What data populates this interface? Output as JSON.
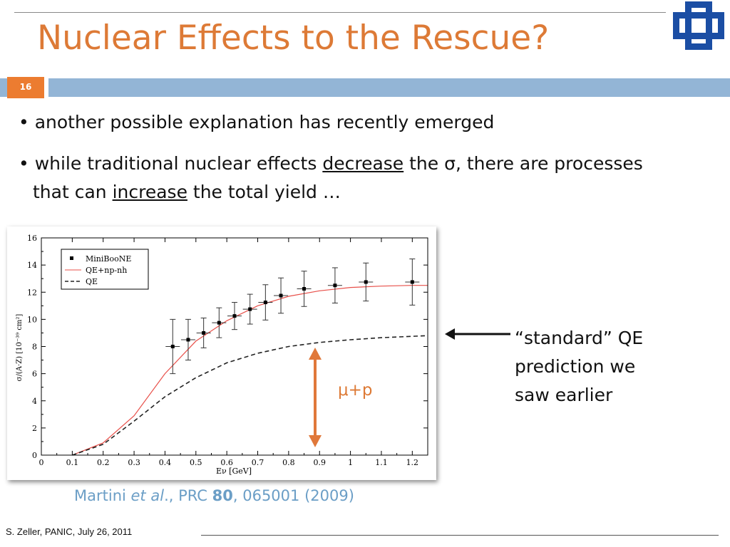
{
  "slide": {
    "title": "Nuclear Effects to the Rescue?",
    "number": "16",
    "bullets": [
      {
        "text": "• another possible explanation has recently emerged"
      },
      {
        "pre": "• while traditional nuclear effects ",
        "u1": "decrease",
        "mid": " the σ, there are processes",
        "line2_pre": "that can ",
        "u2": "increase",
        "line2_post": " the total yield …"
      }
    ],
    "annotation": [
      "“standard” QE",
      "prediction we",
      "saw earlier"
    ],
    "arrow_label": "μ+p",
    "citation": {
      "pre": "Martini ",
      "etal": "et al",
      "mid": "., PRC ",
      "vol": "80",
      "post": ", 065001 (2009)"
    },
    "footer": "S. Zeller, PANIC, July 26, 2011"
  },
  "colors": {
    "title": "#dd7a36",
    "accent_bar": "#93b5d6",
    "slide_num_bg": "#ec7c30",
    "logo": "#1b4ea4",
    "citation": "#6b9ec6",
    "model_line": "#e8504a"
  },
  "chart_data": {
    "type": "line",
    "xlabel": "Eν [GeV]",
    "ylabel": "σ/(A·Z) [10⁻³⁹ cm²]",
    "xlim": [
      0,
      1.25
    ],
    "ylim": [
      0,
      16
    ],
    "x_ticks": [
      "0",
      "0.1",
      "0.2",
      "0.3",
      "0.4",
      "0.5",
      "0.6",
      "0.7",
      "0.8",
      "0.9",
      "1",
      "1.1",
      "1.2"
    ],
    "y_ticks": [
      "0",
      "2",
      "4",
      "6",
      "8",
      "10",
      "12",
      "14",
      "16"
    ],
    "legend": [
      "MiniBooNE",
      "QE+np-nh",
      "QE"
    ],
    "legend_position": "top-left",
    "series": [
      {
        "name": "MiniBooNE",
        "kind": "points_with_errors",
        "points": [
          {
            "x": 0.425,
            "y": 8.0,
            "err": 2.0
          },
          {
            "x": 0.475,
            "y": 8.5,
            "err": 1.5
          },
          {
            "x": 0.525,
            "y": 9.0,
            "err": 1.1
          },
          {
            "x": 0.575,
            "y": 9.75,
            "err": 1.1
          },
          {
            "x": 0.625,
            "y": 10.25,
            "err": 1.0
          },
          {
            "x": 0.675,
            "y": 10.75,
            "err": 1.1
          },
          {
            "x": 0.725,
            "y": 11.25,
            "err": 1.3
          },
          {
            "x": 0.775,
            "y": 11.75,
            "err": 1.3
          },
          {
            "x": 0.85,
            "y": 12.25,
            "err": 1.3
          },
          {
            "x": 0.95,
            "y": 12.5,
            "err": 1.3
          },
          {
            "x": 1.05,
            "y": 12.75,
            "err": 1.4
          },
          {
            "x": 1.2,
            "y": 12.75,
            "err": 1.7
          }
        ]
      },
      {
        "name": "QE+np-nh",
        "kind": "line",
        "color": "#e8504a",
        "x": [
          0.1,
          0.2,
          0.3,
          0.4,
          0.5,
          0.6,
          0.7,
          0.8,
          0.9,
          1.0,
          1.1,
          1.2,
          1.25
        ],
        "y": [
          0.0,
          0.9,
          2.9,
          6.0,
          8.4,
          9.9,
          11.0,
          11.7,
          12.1,
          12.35,
          12.45,
          12.5,
          12.5
        ]
      },
      {
        "name": "QE",
        "kind": "dashed",
        "color": "#222222",
        "x": [
          0.1,
          0.2,
          0.3,
          0.4,
          0.5,
          0.6,
          0.7,
          0.8,
          0.9,
          1.0,
          1.1,
          1.2,
          1.25
        ],
        "y": [
          0.0,
          0.8,
          2.5,
          4.3,
          5.7,
          6.8,
          7.5,
          8.0,
          8.3,
          8.5,
          8.65,
          8.75,
          8.8
        ]
      }
    ]
  }
}
